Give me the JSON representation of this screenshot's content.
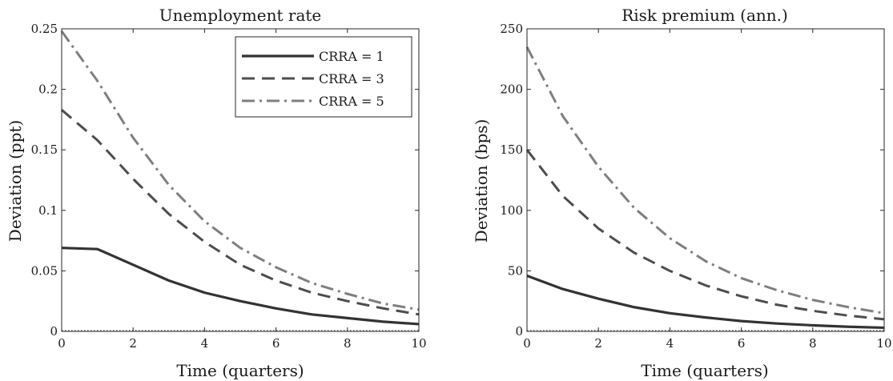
{
  "chart_data": [
    {
      "type": "line",
      "title": "Unemployment rate",
      "xlabel": "Time (quarters)",
      "ylabel": "Deviation (ppt)",
      "xlim": [
        0,
        10
      ],
      "ylim": [
        0,
        0.25
      ],
      "x_ticks": [
        0,
        2,
        4,
        6,
        8,
        10
      ],
      "y_ticks": [
        0,
        0.05,
        0.1,
        0.15,
        0.2,
        0.25
      ],
      "y_tick_labels": [
        "0",
        "0.05",
        "0.1",
        "0.15",
        "0.2",
        "0.25"
      ],
      "legend": "top-right",
      "grid": false,
      "x": [
        0,
        1,
        2,
        3,
        4,
        5,
        6,
        7,
        8,
        9,
        10
      ],
      "series": [
        {
          "name": "CRRA = 1",
          "style": "solid",
          "color": "#333333",
          "values": [
            0.069,
            0.068,
            0.055,
            0.042,
            0.032,
            0.025,
            0.019,
            0.014,
            0.011,
            0.008,
            0.006
          ]
        },
        {
          "name": "CRRA = 3",
          "style": "dashed",
          "color": "#4d4d4d",
          "values": [
            0.183,
            0.158,
            0.126,
            0.097,
            0.074,
            0.055,
            0.042,
            0.032,
            0.025,
            0.019,
            0.014
          ]
        },
        {
          "name": "CRRA = 5",
          "style": "dashdot",
          "color": "#7f7f7f",
          "values": [
            0.248,
            0.207,
            0.16,
            0.121,
            0.091,
            0.069,
            0.053,
            0.04,
            0.031,
            0.023,
            0.018
          ]
        }
      ]
    },
    {
      "type": "line",
      "title": "Risk premium (ann.)",
      "xlabel": "Time (quarters)",
      "ylabel": "Deviation (bps)",
      "xlim": [
        0,
        10
      ],
      "ylim": [
        0,
        250
      ],
      "x_ticks": [
        0,
        2,
        4,
        6,
        8,
        10
      ],
      "y_ticks": [
        0,
        50,
        100,
        150,
        200,
        250
      ],
      "y_tick_labels": [
        "0",
        "50",
        "100",
        "150",
        "200",
        "250"
      ],
      "grid": false,
      "x": [
        0,
        1,
        2,
        3,
        4,
        5,
        6,
        7,
        8,
        9,
        10
      ],
      "series": [
        {
          "name": "CRRA = 1",
          "style": "solid",
          "color": "#333333",
          "values": [
            46,
            35,
            27,
            20,
            15,
            11.5,
            8.5,
            6.5,
            5,
            3.8,
            3
          ]
        },
        {
          "name": "CRRA = 3",
          "style": "dashed",
          "color": "#4d4d4d",
          "values": [
            150,
            112,
            85,
            65,
            50,
            38,
            29,
            22,
            17,
            13,
            10
          ]
        },
        {
          "name": "CRRA = 5",
          "style": "dashdot",
          "color": "#7f7f7f",
          "values": [
            235,
            178,
            136,
            102,
            77,
            58,
            44,
            34,
            26,
            20,
            15
          ]
        }
      ]
    }
  ]
}
